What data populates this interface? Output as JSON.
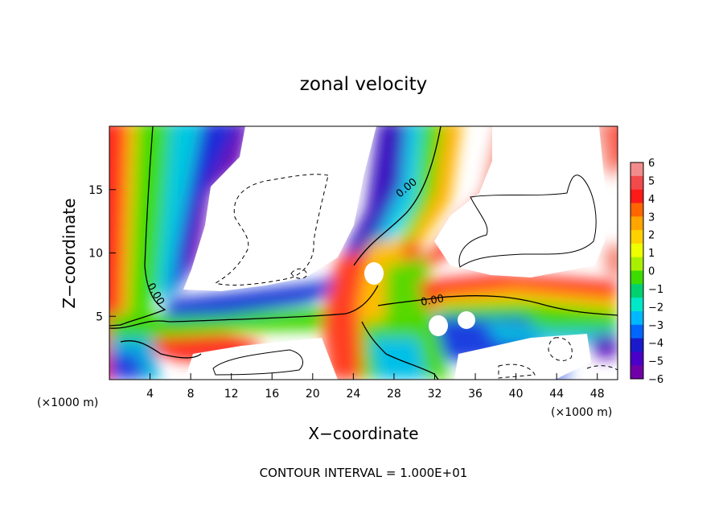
{
  "chart_data": {
    "type": "heatmap",
    "title": "zonal velocity",
    "xlabel": "X−coordinate",
    "ylabel": "Z−coordinate",
    "x_unit_left": "(×1000 m)",
    "x_unit_right": "(×1000 m)",
    "footer": "CONTOUR INTERVAL = 1.000E+01",
    "xlim": [
      0,
      50
    ],
    "ylim": [
      0,
      20
    ],
    "x_ticks": [
      "4",
      "8",
      "12",
      "16",
      "20",
      "24",
      "28",
      "32",
      "36",
      "40",
      "44",
      "48"
    ],
    "y_ticks": [
      "5",
      "10",
      "15"
    ],
    "contour_labels": [
      "0.00",
      "0.00",
      "0.00"
    ],
    "colorbar": {
      "ticks": [
        "6",
        "5",
        "4",
        "3",
        "2",
        "1",
        "0",
        "−1",
        "−2",
        "−3",
        "−4",
        "−5",
        "−6"
      ],
      "range": [
        -6,
        6
      ],
      "colors": [
        "#f28c8c",
        "#f24a4a",
        "#ff1a1a",
        "#ff6600",
        "#ffa500",
        "#ffd000",
        "#eeff00",
        "#a8f000",
        "#3cdc00",
        "#00d070",
        "#00e8c8",
        "#00b8ff",
        "#0066ff",
        "#1a1acc",
        "#4a00c8",
        "#7000a8"
      ]
    }
  }
}
